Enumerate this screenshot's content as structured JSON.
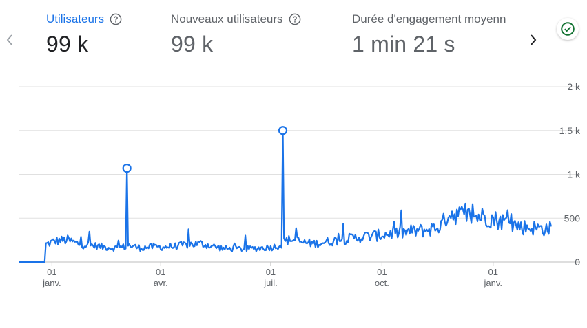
{
  "metrics": [
    {
      "label": "Utilisateurs",
      "value": "99 k",
      "active": true
    },
    {
      "label": "Nouveaux utilisateurs",
      "value": "99 k",
      "active": false
    },
    {
      "label": "Durée d'engagement moyenn",
      "value": "1 min 21 s",
      "active": false
    }
  ],
  "icons": {
    "prev": "chevron-left-icon",
    "next": "chevron-right-icon",
    "help": "help-circle-icon",
    "status": "check-circle-icon"
  },
  "colors": {
    "line": "#1a73e8",
    "active_tab": "#1a73e8",
    "status_green": "#137333",
    "grid": "#e0e0e0"
  },
  "chart_data": {
    "type": "line",
    "y_ticks": [
      "0",
      "500",
      "1 k",
      "1,5 k",
      "2 k"
    ],
    "y_tick_values": [
      0,
      500,
      1000,
      1500,
      2000
    ],
    "ylim": [
      0,
      2000
    ],
    "x_ticks": [
      {
        "day": "01",
        "month": "janv.",
        "index": 27
      },
      {
        "day": "01",
        "month": "avr.",
        "index": 117
      },
      {
        "day": "01",
        "month": "juil.",
        "index": 208
      },
      {
        "day": "01",
        "month": "oct.",
        "index": 300
      },
      {
        "day": "01",
        "month": "janv.",
        "index": 392
      }
    ],
    "series": [
      {
        "markers": [
          {
            "index": 89,
            "value": 1070
          },
          {
            "index": 218,
            "value": 1500
          }
        ],
        "anchors": [
          [
            0,
            0
          ],
          [
            20,
            0
          ],
          [
            21,
            0
          ],
          [
            22,
            200
          ],
          [
            30,
            240
          ],
          [
            40,
            250
          ],
          [
            50,
            200
          ],
          [
            60,
            190
          ],
          [
            70,
            170
          ],
          [
            80,
            160
          ],
          [
            88,
            175
          ],
          [
            89,
            1070
          ],
          [
            90,
            190
          ],
          [
            100,
            160
          ],
          [
            110,
            175
          ],
          [
            120,
            170
          ],
          [
            130,
            180
          ],
          [
            140,
            200
          ],
          [
            150,
            210
          ],
          [
            160,
            180
          ],
          [
            170,
            150
          ],
          [
            180,
            150
          ],
          [
            190,
            150
          ],
          [
            200,
            160
          ],
          [
            210,
            170
          ],
          [
            217,
            200
          ],
          [
            218,
            1500
          ],
          [
            219,
            230
          ],
          [
            225,
            260
          ],
          [
            235,
            220
          ],
          [
            245,
            210
          ],
          [
            255,
            230
          ],
          [
            265,
            250
          ],
          [
            275,
            270
          ],
          [
            285,
            290
          ],
          [
            295,
            300
          ],
          [
            305,
            320
          ],
          [
            315,
            330
          ],
          [
            325,
            350
          ],
          [
            335,
            360
          ],
          [
            345,
            390
          ],
          [
            350,
            430
          ],
          [
            355,
            560
          ],
          [
            365,
            540
          ],
          [
            375,
            520
          ],
          [
            385,
            520
          ],
          [
            395,
            480
          ],
          [
            405,
            450
          ],
          [
            415,
            400
          ],
          [
            425,
            390
          ],
          [
            435,
            380
          ],
          [
            440,
            380
          ]
        ]
      }
    ]
  }
}
